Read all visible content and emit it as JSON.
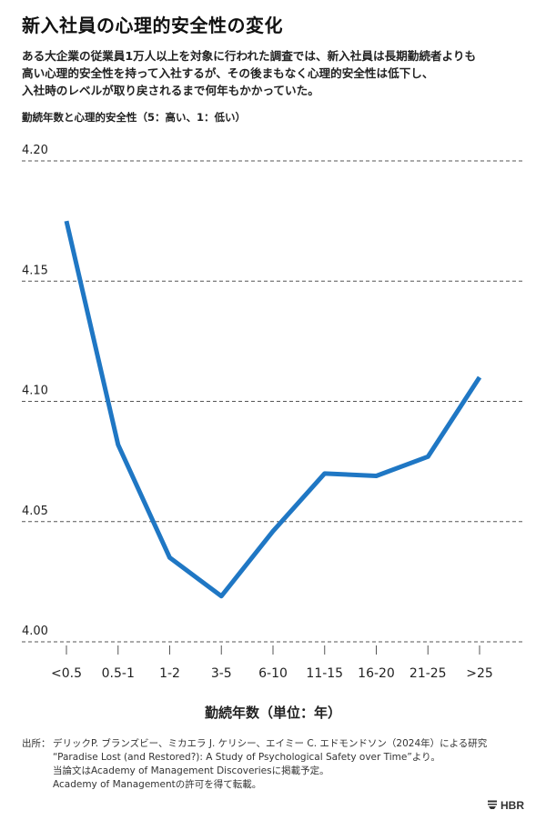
{
  "title": "新入社員の心理的安全性の変化",
  "lead": [
    "ある大企業の従業員1万人以上を対象に行われた調査では、新入社員は長期勤続者よりも",
    "高い心理的安全性を持って入社するが、その後まもなく心理的安全性は低下し、",
    "入社時のレベルが取り戻されるまで何年もかかっていた。"
  ],
  "source": {
    "prefix": "出所：",
    "lines": [
      "デリックP. ブランズビー、ミカエラ J. ケリシー、エイミー C. エドモンドソン（2024年）による研究",
      "“Paradise Lost (and Restored?): A Study of Psychological Safety over Time”より。",
      "当論文はAcademy of Management Discoveriesに掲載予定。",
      "Academy of Managementの許可を得て転載。"
    ]
  },
  "brand": "HBR",
  "colors": {
    "line": "#1f77c4",
    "grid": "#555555",
    "text": "#222222"
  },
  "chart_data": {
    "type": "line",
    "title": "勤続年数と心理的安全性（5：高い、1：低い）",
    "xlabel": "勤続年数（単位：年）",
    "ylabel": "",
    "categories": [
      "<0.5",
      "0.5-1",
      "1-2",
      "3-5",
      "6-10",
      "11-15",
      "16-20",
      "21-25",
      ">25"
    ],
    "series": [
      {
        "values": [
          4.175,
          4.082,
          4.035,
          4.019,
          4.046,
          4.07,
          4.069,
          4.077,
          4.11
        ]
      }
    ],
    "ylim": [
      4.0,
      4.2
    ],
    "yticks": [
      "4.20",
      "4.15",
      "4.10",
      "4.05",
      "4.00"
    ],
    "grid": true,
    "legend": "none"
  }
}
